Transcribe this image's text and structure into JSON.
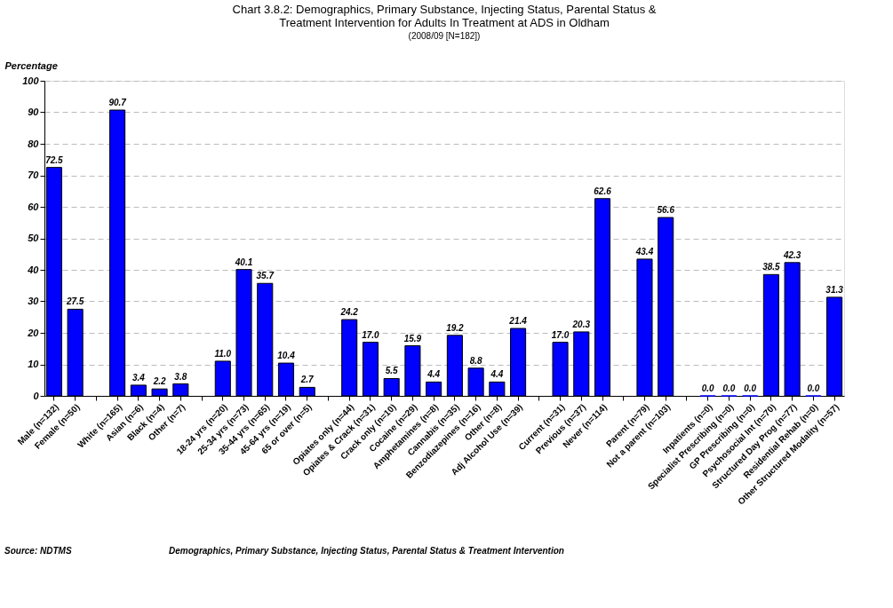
{
  "chart_data": {
    "type": "bar",
    "title": "Chart 3.8.2: Demographics, Primary Substance, Injecting Status, Parental Status & Treatment Intervention for Adults In Treatment at ADS in Oldham",
    "subtitle": "(2008/09 [N=182])",
    "ylabel": "Percentage",
    "categories": [
      "Male (n=132)",
      "Female (n=50)",
      null,
      "White (n=165)",
      "Asian (n=6)",
      "Black (n=4)",
      "Other (n=7)",
      null,
      "18-24 yrs (n=20)",
      "25-34 yrs (n=73)",
      "35-44 yrs (n=65)",
      "45-64 yrs (n=19)",
      "65 or over (n=5)",
      null,
      "Opiates only (n=44)",
      "Opiates & Crack (n=31)",
      "Crack only (n=10)",
      "Cocaine (n=29)",
      "Amphetamines (n=8)",
      "Cannabis (n=35)",
      "Benzodiazepines (n=16)",
      "Other (n=8)",
      "Adj Alcohol Use (n=39)",
      null,
      "Current (n=31)",
      "Previous (n=37)",
      "Never (n=114)",
      null,
      "Parent (n=79)",
      "Not a parent (n=103)",
      null,
      "Inpatients (n=0)",
      "Specialist Prescribing (n=0)",
      "GP Prescribing (n=0)",
      "Psychosocial Int (n=70)",
      "Structured Day Prog (n=77)",
      "Residential Rehab (n=0)",
      "Other Structured Modality (n=57)"
    ],
    "values": [
      72.5,
      27.5,
      null,
      90.7,
      3.4,
      2.2,
      3.8,
      null,
      11.0,
      40.1,
      35.7,
      10.4,
      2.7,
      null,
      24.2,
      17.0,
      5.5,
      15.9,
      4.4,
      19.2,
      8.8,
      4.4,
      21.4,
      null,
      17.0,
      20.3,
      62.6,
      null,
      43.4,
      56.6,
      null,
      0.0,
      0.0,
      0.0,
      38.5,
      42.3,
      0.0,
      31.3
    ],
    "value_labels": [
      "72.5",
      "27.5",
      null,
      "90.7",
      "3.4",
      "2.2",
      "3.8",
      null,
      "11.0",
      "40.1",
      "35.7",
      "10.4",
      "2.7",
      null,
      "24.2",
      "17.0",
      "5.5",
      "15.9",
      "4.4",
      "19.2",
      "8.8",
      "4.4",
      "21.4",
      null,
      "17.0",
      "20.3",
      "62.6",
      null,
      "43.4",
      "56.6",
      null,
      "0.0",
      "0.0",
      "0.0",
      "38.5",
      "42.3",
      "0.0",
      "31.3"
    ],
    "color": "#0000ff",
    "ylim": [
      0,
      100
    ],
    "yticks": [
      0,
      10,
      20,
      30,
      40,
      50,
      60,
      70,
      80,
      90,
      100
    ],
    "grid": "y",
    "annotations": [
      "Source: NDTMS",
      "Demographics, Primary Substance, Injecting Status, Parental Status & Treatment Intervention"
    ]
  }
}
